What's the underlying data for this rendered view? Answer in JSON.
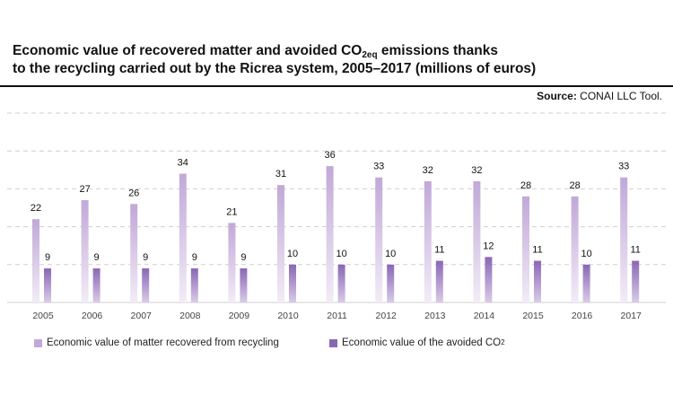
{
  "header": {
    "title_part1": "Economic value of recovered matter and avoided CO",
    "title_sub": "2eq",
    "title_part2": " emissions thanks",
    "title_line2": "to the recycling carried out by the Ricrea system, 2005–2017 (millions of euros)",
    "source_label": "Source:",
    "source_text": "CONAI LLC Tool."
  },
  "legend": {
    "series1_label": "Economic value of matter recovered from recycling",
    "series2_label_main": "Economic value of the avoided CO",
    "series2_label_sub": "2"
  },
  "colors": {
    "series1_top": "#c1a8d8",
    "series1_bottom": "#f2ecf7",
    "series2_top": "#8a67b5",
    "series2_bottom": "#d9cbe8",
    "grid": "#cfcfcf",
    "axis_text": "#444444"
  },
  "chart_data": {
    "type": "bar",
    "title": "Economic value of recovered matter and avoided CO2eq emissions thanks to the recycling carried out by the Ricrea system, 2005–2017 (millions of euros)",
    "categories": [
      "2005",
      "2006",
      "2007",
      "2008",
      "2009",
      "2010",
      "2011",
      "2012",
      "2013",
      "2014",
      "2015",
      "2016",
      "2017"
    ],
    "series": [
      {
        "name": "Economic value of matter recovered from recycling",
        "values": [
          22,
          27,
          26,
          34,
          21,
          31,
          36,
          33,
          32,
          32,
          28,
          28,
          33
        ]
      },
      {
        "name": "Economic value of the avoided CO2",
        "values": [
          9,
          9,
          9,
          9,
          9,
          10,
          10,
          10,
          11,
          12,
          11,
          10,
          11
        ]
      }
    ],
    "ylim": [
      0,
      50
    ],
    "grid": true,
    "legend_position": "bottom"
  }
}
